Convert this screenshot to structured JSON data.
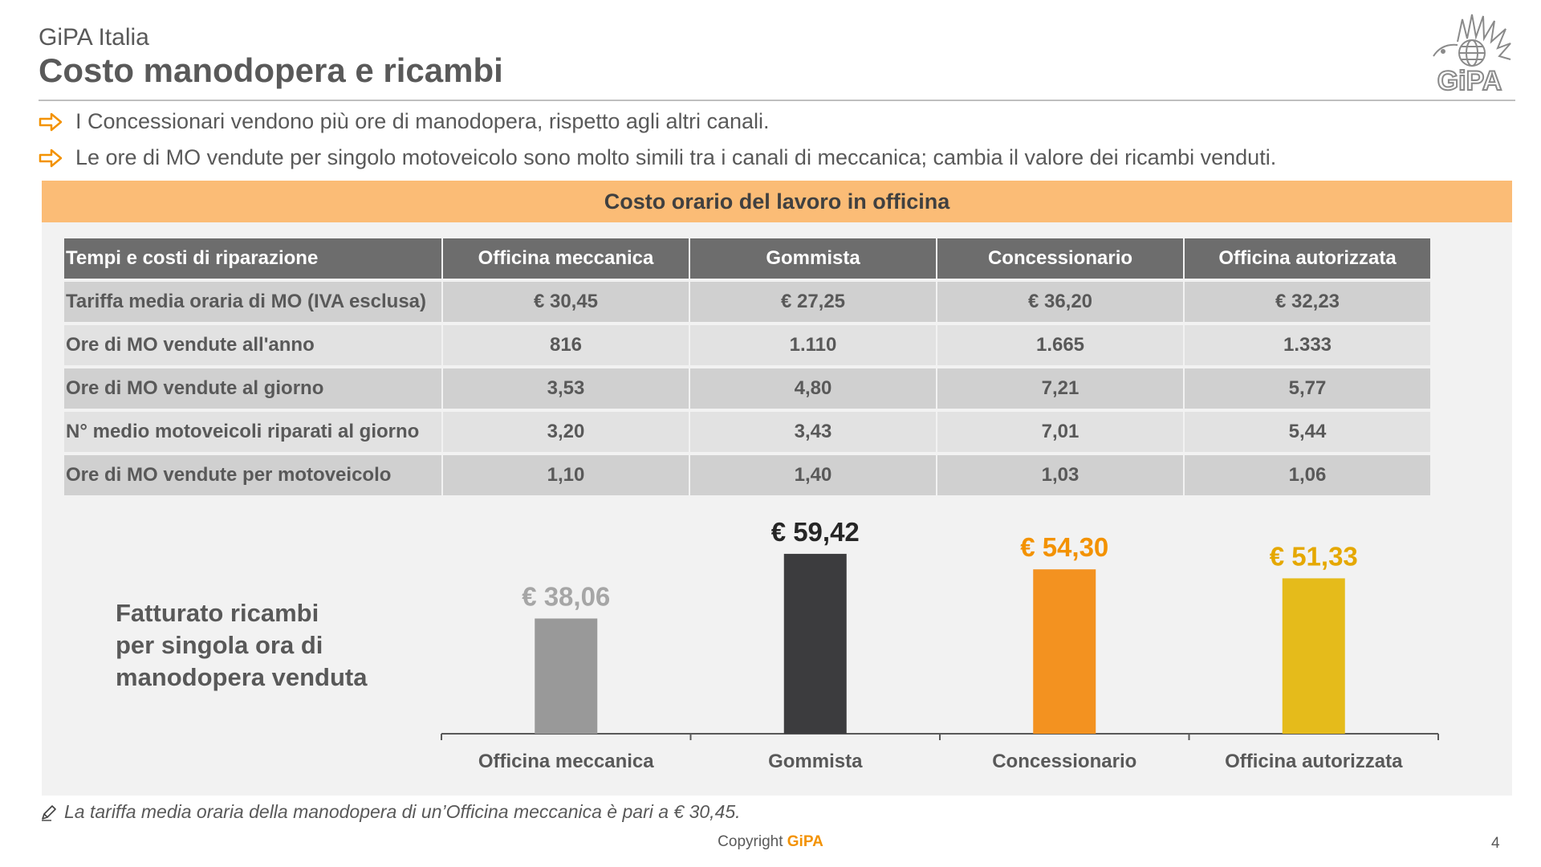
{
  "header": {
    "company": "GiPA Italia",
    "title": "Costo manodopera e ricambi",
    "logo_text": "GiPA"
  },
  "bullets": [
    "I Concessionari vendono più ore di manodopera, rispetto agli altri canali.",
    "Le ore di MO vendute per singolo motoveicolo sono molto simili tra i canali di meccanica; cambia il valore dei ricambi venduti."
  ],
  "panel": {
    "title": "Costo orario del lavoro in officina"
  },
  "table": {
    "headers": [
      "Tempi e costi di riparazione",
      "Officina meccanica",
      "Gommista",
      "Concessionario",
      "Officina autorizzata"
    ],
    "rows": [
      [
        "Tariffa media oraria di MO (IVA esclusa)",
        "€ 30,45",
        "€ 27,25",
        "€ 36,20",
        "€ 32,23"
      ],
      [
        "Ore di MO vendute all'anno",
        "816",
        "1.110",
        "1.665",
        "1.333"
      ],
      [
        "Ore di MO vendute al giorno",
        "3,53",
        "4,80",
        "7,21",
        "5,77"
      ],
      [
        "N° medio motoveicoli riparati al giorno",
        "3,20",
        "3,43",
        "7,01",
        "5,44"
      ],
      [
        "Ore di MO vendute per motoveicolo",
        "1,10",
        "1,40",
        "1,03",
        "1,06"
      ]
    ]
  },
  "chart_data": {
    "type": "bar",
    "title": "Fatturato ricambi per singola ora di manodopera venduta",
    "title_lines": [
      "Fatturato ricambi",
      "per singola ora di",
      "manodopera venduta"
    ],
    "categories": [
      "Officina meccanica",
      "Gommista",
      "Concessionario",
      "Officina autorizzata"
    ],
    "values": [
      38.06,
      59.42,
      54.3,
      51.33
    ],
    "value_labels": [
      "€ 38,06",
      "€ 59,42",
      "€ 54,30",
      "€ 51,33"
    ],
    "colors": [
      "#999999",
      "#3c3c3e",
      "#f39220",
      "#e5bb1b"
    ],
    "ylim": [
      0,
      70
    ],
    "grid": false,
    "legend": "none"
  },
  "footnote": "La tariffa media oraria della manodopera di un’Officina meccanica è pari a € 30,45.",
  "footer": {
    "copyright_prefix": "Copyright",
    "copyright_brand": "GiPA",
    "page_number": "4"
  },
  "colors": {
    "accent_orange": "#f39200",
    "panel_header": "#fbbc76",
    "table_header": "#6d6d6d",
    "text": "#595959"
  }
}
